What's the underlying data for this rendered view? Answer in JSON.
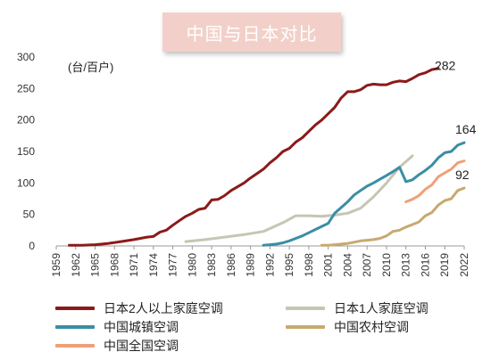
{
  "title": "中国与日本对比",
  "chart_data": {
    "type": "line",
    "unit_label": "(台/百户)",
    "ylim": [
      0,
      300
    ],
    "yticks": [
      0,
      50,
      100,
      150,
      200,
      250,
      300
    ],
    "xlim": [
      1959,
      2022
    ],
    "xticks": [
      1959,
      1962,
      1965,
      1968,
      1971,
      1974,
      1977,
      1980,
      1983,
      1986,
      1989,
      1992,
      1995,
      1998,
      2001,
      2004,
      2007,
      2010,
      2013,
      2016,
      2019,
      2022
    ],
    "grid": false,
    "legend_position": "bottom",
    "series": [
      {
        "name": "日本2人以上家庭空调",
        "color": "#8b1a1a",
        "end_label": "282",
        "x": [
          1961,
          1963,
          1965,
          1967,
          1969,
          1971,
          1973,
          1974,
          1975,
          1976,
          1977,
          1978,
          1979,
          1980,
          1981,
          1982,
          1983,
          1984,
          1985,
          1986,
          1987,
          1988,
          1989,
          1990,
          1991,
          1992,
          1993,
          1994,
          1995,
          1996,
          1997,
          1998,
          1999,
          2000,
          2001,
          2002,
          2003,
          2004,
          2005,
          2006,
          2007,
          2008,
          2009,
          2010,
          2011,
          2012,
          2013,
          2014,
          2015,
          2016,
          2017,
          2018
        ],
        "y": [
          1,
          1,
          2,
          4,
          7,
          10,
          14,
          15,
          22,
          25,
          33,
          40,
          47,
          52,
          58,
          60,
          73,
          74,
          80,
          88,
          94,
          100,
          108,
          115,
          122,
          132,
          140,
          150,
          155,
          165,
          172,
          182,
          192,
          200,
          210,
          220,
          235,
          245,
          245,
          248,
          255,
          257,
          256,
          256,
          260,
          262,
          261,
          266,
          272,
          275,
          280,
          282
        ]
      },
      {
        "name": "日本1人家庭空调",
        "color": "#c5c6b3",
        "x": [
          1979,
          1982,
          1985,
          1988,
          1991,
          1994,
          1996,
          1998,
          2000,
          2002,
          2004,
          2006,
          2008,
          2010,
          2012,
          2014
        ],
        "y": [
          7,
          10,
          14,
          18,
          23,
          37,
          48,
          48,
          47,
          49,
          52,
          60,
          78,
          100,
          125,
          143
        ]
      },
      {
        "name": "中国城镇空调",
        "color": "#3a8ea5",
        "x": [
          1991,
          1992,
          1993,
          1994,
          1995,
          1996,
          1997,
          1998,
          1999,
          2000,
          2001,
          2002,
          2003,
          2004,
          2005,
          2006,
          2007,
          2008,
          2009,
          2010,
          2011,
          2012,
          2013,
          2014,
          2015,
          2016,
          2017,
          2018,
          2019,
          2020,
          2021,
          2022
        ],
        "y": [
          1,
          2,
          3,
          5,
          8,
          12,
          16,
          21,
          26,
          31,
          36,
          52,
          61,
          70,
          81,
          88,
          95,
          100,
          106,
          112,
          118,
          125,
          102,
          105,
          113,
          120,
          128,
          140,
          148,
          150,
          160,
          164
        ]
      },
      {
        "name": "中国农村空调",
        "color": "#c8a96e",
        "x": [
          2000,
          2001,
          2002,
          2003,
          2004,
          2005,
          2006,
          2007,
          2008,
          2009,
          2010,
          2011,
          2012,
          2013,
          2014,
          2015,
          2016,
          2017,
          2018,
          2019,
          2020,
          2021,
          2022
        ],
        "y": [
          1,
          1,
          2,
          3,
          4,
          6,
          8,
          9,
          10,
          12,
          16,
          23,
          25,
          30,
          34,
          38,
          48,
          53,
          65,
          72,
          75,
          88,
          92
        ]
      },
      {
        "name": "中国全国空调",
        "color": "#f0a078",
        "x": [
          2013,
          2014,
          2015,
          2016,
          2017,
          2018,
          2019,
          2020,
          2021,
          2022
        ],
        "y": [
          70,
          74,
          80,
          90,
          97,
          110,
          116,
          122,
          132,
          135
        ]
      }
    ],
    "annotations": [
      {
        "text": "164",
        "series": 2
      },
      {
        "text": "92",
        "series": 3
      }
    ]
  }
}
